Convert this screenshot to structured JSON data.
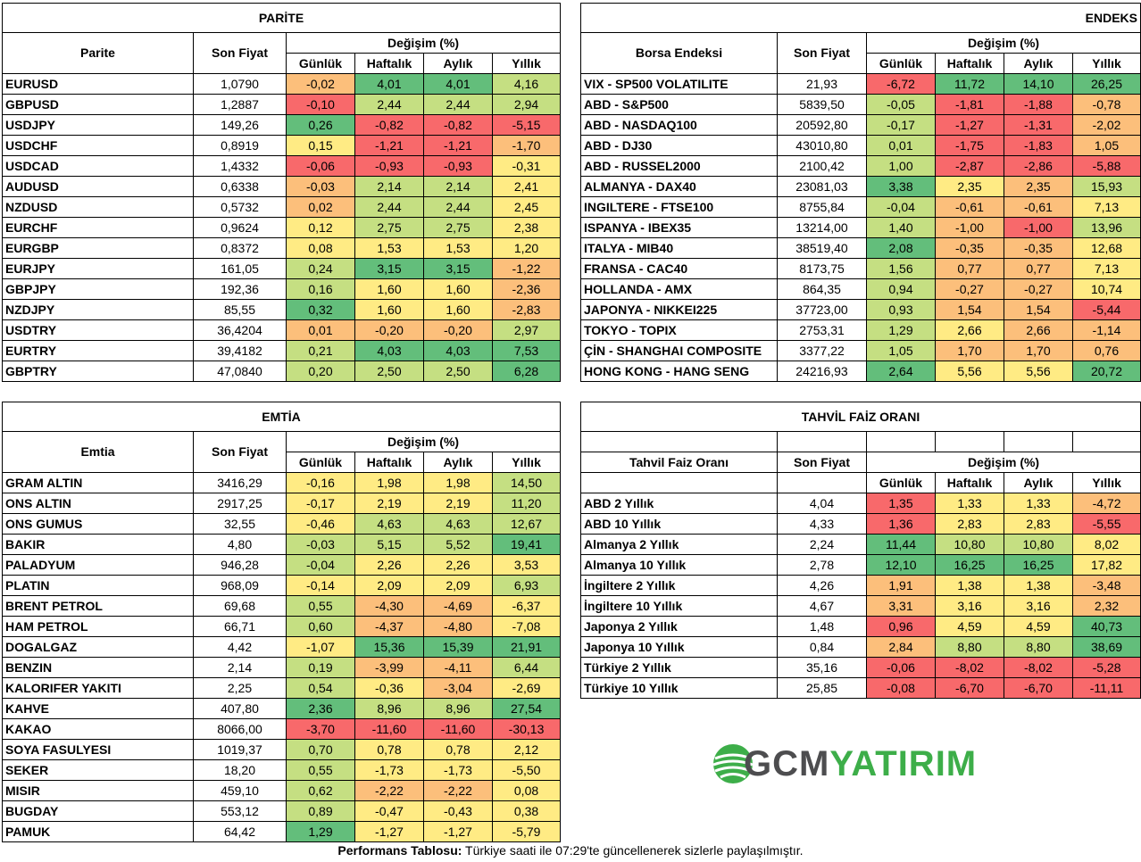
{
  "colors": {
    "green_dark": "#63BE7B",
    "green_light": "#C5DF82",
    "yellow": "#FFEB84",
    "orange": "#FCBF7B",
    "red": "#F8696B"
  },
  "parite": {
    "title": "PARİTE",
    "col_name": "Parite",
    "col_price": "Son Fiyat",
    "col_change": "Değişim (%)",
    "sub": [
      "Günlük",
      "Haftalık",
      "Aylık",
      "Yıllık"
    ],
    "rows": [
      {
        "name": "EURUSD",
        "price": "1,0790",
        "v": [
          "-0,02",
          "4,01",
          "4,01",
          "4,16"
        ]
      },
      {
        "name": "GBPUSD",
        "price": "1,2887",
        "v": [
          "-0,10",
          "2,44",
          "2,44",
          "2,94"
        ]
      },
      {
        "name": "USDJPY",
        "price": "149,26",
        "v": [
          "0,26",
          "-0,82",
          "-0,82",
          "-5,15"
        ]
      },
      {
        "name": "USDCHF",
        "price": "0,8919",
        "v": [
          "0,15",
          "-1,21",
          "-1,21",
          "-1,70"
        ]
      },
      {
        "name": "USDCAD",
        "price": "1,4332",
        "v": [
          "-0,06",
          "-0,93",
          "-0,93",
          "-0,31"
        ]
      },
      {
        "name": "AUDUSD",
        "price": "0,6338",
        "v": [
          "-0,03",
          "2,14",
          "2,14",
          "2,41"
        ]
      },
      {
        "name": "NZDUSD",
        "price": "0,5732",
        "v": [
          "0,02",
          "2,44",
          "2,44",
          "2,45"
        ]
      },
      {
        "name": "EURCHF",
        "price": "0,9624",
        "v": [
          "0,12",
          "2,75",
          "2,75",
          "2,38"
        ]
      },
      {
        "name": "EURGBP",
        "price": "0,8372",
        "v": [
          "0,08",
          "1,53",
          "1,53",
          "1,20"
        ]
      },
      {
        "name": "EURJPY",
        "price": "161,05",
        "v": [
          "0,24",
          "3,15",
          "3,15",
          "-1,22"
        ]
      },
      {
        "name": "GBPJPY",
        "price": "192,36",
        "v": [
          "0,16",
          "1,60",
          "1,60",
          "-2,36"
        ]
      },
      {
        "name": "NZDJPY",
        "price": "85,55",
        "v": [
          "0,32",
          "1,60",
          "1,60",
          "-2,83"
        ]
      },
      {
        "name": "USDTRY",
        "price": "36,4204",
        "v": [
          "0,01",
          "-0,20",
          "-0,20",
          "2,97"
        ]
      },
      {
        "name": "EURTRY",
        "price": "39,4182",
        "v": [
          "0,21",
          "4,03",
          "4,03",
          "7,53"
        ]
      },
      {
        "name": "GBPTRY",
        "price": "47,0840",
        "v": [
          "0,20",
          "2,50",
          "2,50",
          "6,28"
        ]
      }
    ]
  },
  "endeks": {
    "title": "ENDEKS",
    "col_name": "Borsa Endeksi",
    "col_price": "Son Fiyat",
    "col_change": "Değişim (%)",
    "sub": [
      "Günlük",
      "Haftalık",
      "Aylık",
      "Yıllık"
    ],
    "rows": [
      {
        "name": "VIX  - SP500 VOLATILITE",
        "price": "21,93",
        "v": [
          "-6,72",
          "11,72",
          "14,10",
          "26,25"
        ]
      },
      {
        "name": "ABD - S&P500",
        "price": "5839,50",
        "v": [
          "-0,05",
          "-1,81",
          "-1,88",
          "-0,78"
        ]
      },
      {
        "name": "ABD - NASDAQ100",
        "price": "20592,80",
        "v": [
          "-0,17",
          "-1,27",
          "-1,31",
          "-2,02"
        ]
      },
      {
        "name": "ABD - DJ30",
        "price": "43010,80",
        "v": [
          "0,01",
          "-1,75",
          "-1,83",
          "1,05"
        ]
      },
      {
        "name": "ABD - RUSSEL2000",
        "price": "2100,42",
        "v": [
          "1,00",
          "-2,87",
          "-2,86",
          "-5,88"
        ]
      },
      {
        "name": "ALMANYA - DAX40",
        "price": "23081,03",
        "v": [
          "3,38",
          "2,35",
          "2,35",
          "15,93"
        ]
      },
      {
        "name": "INGILTERE - FTSE100",
        "price": "8755,84",
        "v": [
          "-0,04",
          "-0,61",
          "-0,61",
          "7,13"
        ]
      },
      {
        "name": "ISPANYA - IBEX35",
        "price": "13214,00",
        "v": [
          "1,40",
          "-1,00",
          "-1,00",
          "13,96"
        ]
      },
      {
        "name": "ITALYA - MIB40",
        "price": "38519,40",
        "v": [
          "2,08",
          "-0,35",
          "-0,35",
          "12,68"
        ]
      },
      {
        "name": "FRANSA - CAC40",
        "price": "8173,75",
        "v": [
          "1,56",
          "0,77",
          "0,77",
          "7,13"
        ]
      },
      {
        "name": "HOLLANDA - AMX",
        "price": "864,35",
        "v": [
          "0,94",
          "-0,27",
          "-0,27",
          "10,74"
        ]
      },
      {
        "name": "JAPONYA - NIKKEI225",
        "price": "37723,00",
        "v": [
          "0,93",
          "1,54",
          "1,54",
          "-5,44"
        ]
      },
      {
        "name": "TOKYO - TOPIX",
        "price": "2753,31",
        "v": [
          "1,29",
          "2,66",
          "2,66",
          "-1,14"
        ]
      },
      {
        "name": "ÇİN - SHANGHAI COMPOSITE",
        "price": "3377,22",
        "v": [
          "1,05",
          "1,70",
          "1,70",
          "0,76"
        ]
      },
      {
        "name": "HONG KONG - HANG SENG",
        "price": "24216,93",
        "v": [
          "2,64",
          "5,56",
          "5,56",
          "20,72"
        ]
      }
    ]
  },
  "emtia": {
    "title": "EMTİA",
    "col_name": "Emtia",
    "col_price": "Son Fiyat",
    "col_change": "Değişim (%)",
    "sub": [
      "Günlük",
      "Haftalık",
      "Aylık",
      "Yıllık"
    ],
    "rows": [
      {
        "name": "GRAM ALTIN",
        "price": "3416,29",
        "v": [
          "-0,16",
          "1,98",
          "1,98",
          "14,50"
        ]
      },
      {
        "name": "ONS ALTIN",
        "price": "2917,25",
        "v": [
          "-0,17",
          "2,19",
          "2,19",
          "11,20"
        ]
      },
      {
        "name": "ONS GUMUS",
        "price": "32,55",
        "v": [
          "-0,46",
          "4,63",
          "4,63",
          "12,67"
        ]
      },
      {
        "name": "BAKIR",
        "price": "4,80",
        "v": [
          "-0,03",
          "5,15",
          "5,52",
          "19,41"
        ]
      },
      {
        "name": "PALADYUM",
        "price": "946,28",
        "v": [
          "-0,04",
          "2,26",
          "2,26",
          "3,53"
        ]
      },
      {
        "name": "PLATIN",
        "price": "968,09",
        "v": [
          "-0,14",
          "2,09",
          "2,09",
          "6,93"
        ]
      },
      {
        "name": "BRENT PETROL",
        "price": "69,68",
        "v": [
          "0,55",
          "-4,30",
          "-4,69",
          "-6,37"
        ]
      },
      {
        "name": "HAM PETROL",
        "price": "66,71",
        "v": [
          "0,60",
          "-4,37",
          "-4,80",
          "-7,08"
        ]
      },
      {
        "name": "DOGALGAZ",
        "price": "4,42",
        "v": [
          "-1,07",
          "15,36",
          "15,39",
          "21,91"
        ]
      },
      {
        "name": "BENZIN",
        "price": "2,14",
        "v": [
          "0,19",
          "-3,99",
          "-4,11",
          "6,44"
        ]
      },
      {
        "name": "KALORIFER YAKITI",
        "price": "2,25",
        "v": [
          "0,54",
          "-0,36",
          "-3,04",
          "-2,69"
        ]
      },
      {
        "name": "KAHVE",
        "price": "407,80",
        "v": [
          "2,36",
          "8,96",
          "8,96",
          "27,54"
        ]
      },
      {
        "name": "KAKAO",
        "price": "8066,00",
        "v": [
          "-3,70",
          "-11,60",
          "-11,60",
          "-30,13"
        ]
      },
      {
        "name": "SOYA FASULYESI",
        "price": "1019,37",
        "v": [
          "0,70",
          "0,78",
          "0,78",
          "2,12"
        ]
      },
      {
        "name": "SEKER",
        "price": "18,20",
        "v": [
          "0,55",
          "-1,73",
          "-1,73",
          "-5,50"
        ]
      },
      {
        "name": "MISIR",
        "price": "459,10",
        "v": [
          "0,62",
          "-2,22",
          "-2,22",
          "0,08"
        ]
      },
      {
        "name": "BUGDAY",
        "price": "553,12",
        "v": [
          "0,89",
          "-0,47",
          "-0,43",
          "0,38"
        ]
      },
      {
        "name": "PAMUK",
        "price": "64,42",
        "v": [
          "1,29",
          "-1,27",
          "-1,27",
          "-5,79"
        ]
      }
    ]
  },
  "tahvil": {
    "title": "TAHVİL FAİZ ORANI",
    "col_name": "Tahvil Faiz Oranı",
    "col_price": "Son Fiyat",
    "col_change": "Değişim (%)",
    "sub": [
      "Günlük",
      "Haftalık",
      "Aylık",
      "Yıllık"
    ],
    "rows": [
      {
        "name": "ABD 2 Yıllık",
        "price": "4,04",
        "v": [
          "1,35",
          "1,33",
          "1,33",
          "-4,72"
        ]
      },
      {
        "name": "ABD 10 Yıllık",
        "price": "4,33",
        "v": [
          "1,36",
          "2,83",
          "2,83",
          "-5,55"
        ]
      },
      {
        "name": "Almanya 2 Yıllık",
        "price": "2,24",
        "v": [
          "11,44",
          "10,80",
          "10,80",
          "8,02"
        ]
      },
      {
        "name": "Almanya 10 Yıllık",
        "price": "2,78",
        "v": [
          "12,10",
          "16,25",
          "16,25",
          "17,82"
        ]
      },
      {
        "name": "İngiltere 2 Yıllık",
        "price": "4,26",
        "v": [
          "1,91",
          "1,38",
          "1,38",
          "-3,48"
        ]
      },
      {
        "name": "İngiltere 10 Yıllık",
        "price": "4,67",
        "v": [
          "3,31",
          "3,16",
          "3,16",
          "2,32"
        ]
      },
      {
        "name": "Japonya 2 Yıllık",
        "price": "1,48",
        "v": [
          "0,96",
          "4,59",
          "4,59",
          "40,73"
        ]
      },
      {
        "name": "Japonya 10 Yıllık",
        "price": "0,84",
        "v": [
          "2,84",
          "8,80",
          "8,80",
          "38,69"
        ]
      },
      {
        "name": "Türkiye 2 Yıllık",
        "price": "35,16",
        "v": [
          "-0,06",
          "-8,02",
          "-8,02",
          "-5,28"
        ]
      },
      {
        "name": "Türkiye 10 Yıllık",
        "price": "25,85",
        "v": [
          "-0,08",
          "-6,70",
          "-6,70",
          "-11,11"
        ]
      }
    ]
  },
  "logo": {
    "part1": "GCM",
    "part2": "YATIRIM",
    "color1": "#4D4D4F",
    "color2": "#3DAE49"
  },
  "footer": {
    "bold": "Performans Tablosu:",
    "text": " Türkiye saati ile 07:29'te güncellenerek sizlerle paylaşılmıştır."
  }
}
